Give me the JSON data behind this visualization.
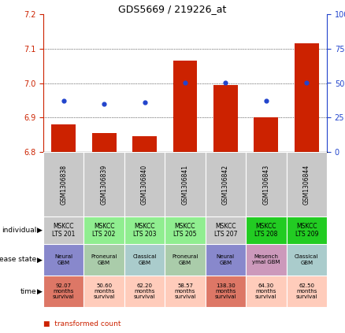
{
  "title": "GDS5669 / 219226_at",
  "samples": [
    "GSM1306838",
    "GSM1306839",
    "GSM1306840",
    "GSM1306841",
    "GSM1306842",
    "GSM1306843",
    "GSM1306844"
  ],
  "transformed_count": [
    6.88,
    6.855,
    6.845,
    7.065,
    6.995,
    6.9,
    7.115
  ],
  "percentile_rank": [
    37,
    35,
    36,
    50,
    50,
    37,
    50
  ],
  "ylim_left": [
    6.8,
    7.2
  ],
  "ylim_right": [
    0,
    100
  ],
  "yticks_left": [
    6.8,
    6.9,
    7.0,
    7.1,
    7.2
  ],
  "yticks_right": [
    0,
    25,
    50,
    75,
    100
  ],
  "individual": [
    "MSKCC\nLTS 201",
    "MSKCC\nLTS 202",
    "MSKCC\nLTS 203",
    "MSKCC\nLTS 205",
    "MSKCC\nLTS 207",
    "MSKCC\nLTS 208",
    "MSKCC\nLTS 209"
  ],
  "individual_colors": [
    "#c8c8c8",
    "#90ee90",
    "#90ee90",
    "#90ee90",
    "#c8c8c8",
    "#22cc22",
    "#22cc22"
  ],
  "disease_state": [
    "Neural\nGBM",
    "Proneural\nGBM",
    "Classical\nGBM",
    "Proneural\nGBM",
    "Neural\nGBM",
    "Mesench\nymal GBM",
    "Classical\nGBM"
  ],
  "disease_colors": [
    "#8888cc",
    "#aaccaa",
    "#aacccc",
    "#aaccaa",
    "#8888cc",
    "#cc99bb",
    "#aacccc"
  ],
  "time": [
    "92.07\nmonths\nsurvival",
    "50.60\nmonths\nsurvival",
    "62.20\nmonths\nsurvival",
    "58.57\nmonths\nsurvival",
    "138.30\nmonths\nsurvival",
    "64.30\nmonths\nsurvival",
    "62.50\nmonths\nsurvival"
  ],
  "time_colors": [
    "#dd7766",
    "#ffccbb",
    "#ffccbb",
    "#ffccbb",
    "#dd7766",
    "#ffccbb",
    "#ffccbb"
  ],
  "bar_color": "#cc2200",
  "dot_color": "#2244cc",
  "left_axis_color": "#cc2200",
  "right_axis_color": "#2244cc",
  "grid_color": "#000000"
}
